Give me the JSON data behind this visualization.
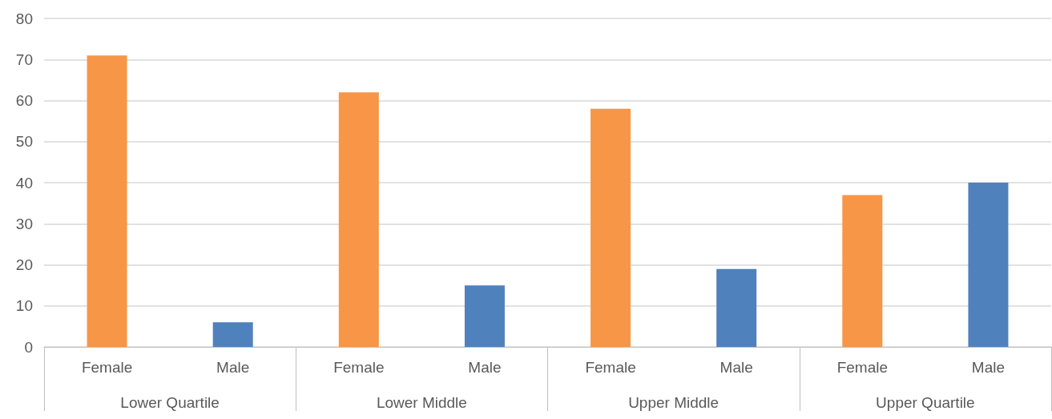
{
  "chart_data": {
    "type": "bar",
    "categories": [
      "Female",
      "Male",
      "Female",
      "Male",
      "Female",
      "Male",
      "Female",
      "Male"
    ],
    "values": [
      71,
      6,
      62,
      15,
      58,
      19,
      37,
      40
    ],
    "colors": [
      "#f79646",
      "#4f81bd",
      "#f79646",
      "#4f81bd",
      "#f79646",
      "#4f81bd",
      "#f79646",
      "#4f81bd"
    ],
    "annotations": [
      "Lower Quartile",
      "Lower Middle",
      "Upper Middle",
      "Upper Quartile"
    ],
    "ylim": [
      0,
      80
    ],
    "yticks": [
      0,
      10,
      20,
      30,
      40,
      50,
      60,
      70,
      80
    ],
    "grid": "y"
  }
}
